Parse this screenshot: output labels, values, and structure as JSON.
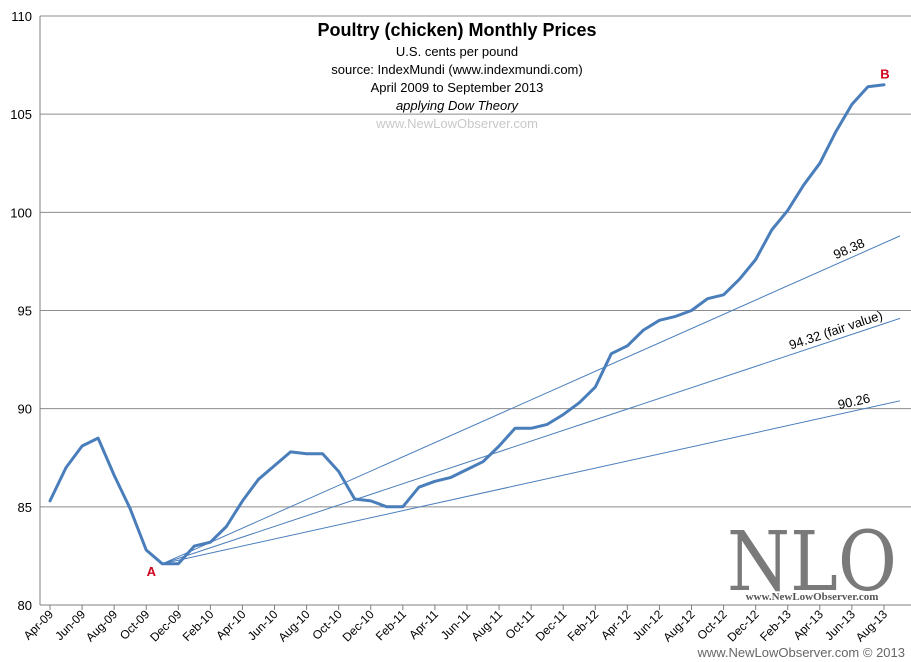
{
  "chart_data": {
    "type": "line",
    "title": "Poultry (chicken) Monthly Prices",
    "subtitles": [
      "U.S. cents per pound",
      "source: IndexMundi (www.indexmundi.com)",
      "April 2009 to September 2013"
    ],
    "subtitle_italic": "applying Dow Theory",
    "watermark": "www.NewLowObserver.com",
    "ylim": [
      80,
      110
    ],
    "yticks": [
      80,
      85,
      90,
      95,
      100,
      105,
      110
    ],
    "grid": "horizontal",
    "xtick_labels": [
      "Apr-09",
      "Jun-09",
      "Aug-09",
      "Oct-09",
      "Dec-09",
      "Feb-10",
      "Apr-10",
      "Jun-10",
      "Aug-10",
      "Oct-10",
      "Dec-10",
      "Feb-11",
      "Apr-11",
      "Jun-11",
      "Aug-11",
      "Oct-11",
      "Dec-11",
      "Feb-12",
      "Apr-12",
      "Jun-12",
      "Aug-12",
      "Oct-12",
      "Dec-12",
      "Feb-13",
      "Apr-13",
      "Jun-13",
      "Aug-13"
    ],
    "series": [
      {
        "color": "#4a7ebb",
        "values": [
          85.3,
          87.0,
          88.1,
          88.5,
          86.6,
          84.9,
          82.8,
          82.1,
          82.1,
          83.0,
          83.2,
          84.0,
          85.3,
          86.4,
          87.1,
          87.8,
          87.7,
          87.7,
          86.8,
          85.4,
          85.3,
          85.0,
          85.0,
          86.0,
          86.3,
          86.5,
          86.9,
          87.3,
          88.1,
          89.0,
          89.0,
          89.2,
          89.7,
          90.3,
          91.1,
          92.8,
          93.2,
          94.0,
          94.5,
          94.7,
          95.0,
          95.6,
          95.8,
          96.6,
          97.6,
          99.1,
          100.1,
          101.4,
          102.5,
          104.1,
          105.5,
          106.4,
          106.5
        ]
      }
    ],
    "annotations": [
      {
        "label": "A",
        "index": 7,
        "value": 82.1
      },
      {
        "label": "B",
        "index": 52,
        "value": 106.5
      }
    ],
    "trendlines": [
      {
        "label": "98.38",
        "from_index": 7,
        "from_value": 82.1,
        "to_index": 53,
        "to_value": 98.8
      },
      {
        "label": "94.32 (fair value)",
        "from_index": 7,
        "from_value": 82.1,
        "to_index": 53,
        "to_value": 94.6
      },
      {
        "label": "90.26",
        "from_index": 7,
        "from_value": 82.1,
        "to_index": 53,
        "to_value": 90.4
      }
    ]
  },
  "logo": {
    "text": "NLO",
    "url": "www.NewLowObserver.com"
  },
  "copyright": "www.NewLowObserver.com © 2013"
}
